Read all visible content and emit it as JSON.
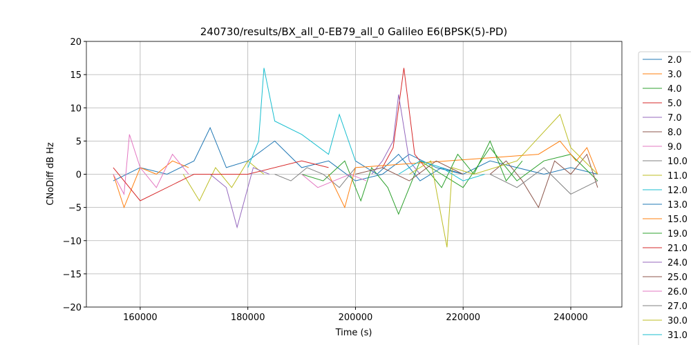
{
  "chart_data": {
    "type": "line",
    "title": "240730/results/BX_all_0-EB79_all_0 Galileo E6(BPSK(5)-PD)",
    "xlabel": "Time (s)",
    "ylabel": "CNoDiff dB Hz",
    "xlim": [
      150000,
      249500
    ],
    "ylim": [
      -20,
      20
    ],
    "xticks": [
      160000,
      180000,
      200000,
      220000,
      240000
    ],
    "yticks": [
      {
        "value": -20,
        "label": "−20"
      },
      {
        "value": -15,
        "label": "−15"
      },
      {
        "value": -10,
        "label": "−10"
      },
      {
        "value": -5,
        "label": "−5"
      },
      0,
      5,
      10,
      15,
      20
    ],
    "grid": true,
    "legend": "outside right",
    "series": [
      {
        "name": "2.0",
        "color": "#1f77b4",
        "x": [
          155000,
          160000,
          165000,
          170000,
          173000,
          176000,
          180000,
          185000,
          190000,
          195000,
          200000,
          205000,
          210000,
          215000,
          220000,
          225000,
          230000,
          235000,
          240000,
          245000
        ],
        "values": [
          -1,
          1,
          0,
          2,
          7,
          1,
          2,
          5,
          1,
          2,
          -1,
          0,
          3,
          1,
          0,
          2,
          1,
          0,
          1,
          0
        ]
      },
      {
        "name": "3.0",
        "color": "#ff7f0e",
        "x": [
          155000,
          157000,
          160000,
          163000,
          166000,
          169000
        ],
        "values": [
          0,
          -5,
          1,
          0,
          2,
          1
        ]
      },
      {
        "name": "4.0",
        "color": "#2ca02c",
        "x": [
          190000,
          194000,
          198000,
          201000,
          203000,
          206000,
          208000,
          212000,
          216000,
          220000,
          225000,
          230000,
          235000,
          240000,
          245000
        ],
        "values": [
          0,
          -1,
          2,
          -4,
          1,
          -2,
          -6,
          2,
          0,
          -2,
          4,
          -1,
          2,
          3,
          -1
        ]
      },
      {
        "name": "5.0",
        "color": "#d62728",
        "x": [
          205000,
          207000,
          209000,
          211000,
          213000
        ],
        "values": [
          1,
          4,
          16,
          3,
          1
        ]
      },
      {
        "name": "7.0",
        "color": "#9467bd",
        "x": [
          203000,
          205000,
          207000,
          208000,
          210000,
          212000
        ],
        "values": [
          0,
          2,
          5,
          12,
          2,
          0
        ]
      },
      {
        "name": "8.0",
        "color": "#8c564b",
        "x": [
          225000,
          228000,
          231000,
          234000,
          237000,
          240000,
          243000,
          245000
        ],
        "values": [
          0,
          2,
          -1,
          -5,
          2,
          0,
          3,
          -2
        ]
      },
      {
        "name": "9.0",
        "color": "#e377c2",
        "x": [
          155000,
          157000,
          158000,
          160000,
          163000,
          166000,
          169000
        ],
        "values": [
          0,
          -3,
          6,
          1,
          -2,
          3,
          0
        ]
      },
      {
        "name": "10.0",
        "color": "#7f7f7f",
        "x": [
          185000,
          188000,
          191000,
          194000,
          197000,
          200000
        ],
        "values": [
          0,
          -1,
          1,
          0,
          -2,
          1
        ]
      },
      {
        "name": "11.0",
        "color": "#bcbd22",
        "x": [
          168000,
          171000,
          174000,
          177000,
          180000,
          183000
        ],
        "values": [
          0,
          -4,
          1,
          -2,
          2,
          0
        ]
      },
      {
        "name": "12.0",
        "color": "#17becf",
        "x": [
          180000,
          182000,
          183000,
          185000,
          190000,
          195000,
          197000,
          200000
        ],
        "values": [
          1,
          5,
          16,
          8,
          6,
          3,
          9,
          2
        ]
      },
      {
        "name": "13.0",
        "color": "#1f77b4",
        "x": [
          200000,
          204000,
          208000,
          212000,
          216000,
          220000
        ],
        "values": [
          2,
          0,
          3,
          -1,
          1,
          0
        ]
      },
      {
        "name": "15.0",
        "color": "#ff7f0e",
        "x": [
          195000,
          198000,
          200000,
          234000,
          238000,
          241000,
          243000,
          245000
        ],
        "values": [
          0,
          -5,
          1,
          3,
          5,
          2,
          4,
          0
        ]
      },
      {
        "name": "19.0",
        "color": "#2ca02c",
        "x": [
          213000,
          216000,
          219000,
          222000,
          225000,
          228000,
          231000
        ],
        "values": [
          1,
          -2,
          3,
          0,
          5,
          -1,
          2
        ]
      },
      {
        "name": "21.0",
        "color": "#d62728",
        "x": [
          155000,
          160000,
          170000,
          180000,
          190000,
          195000
        ],
        "values": [
          1,
          -4,
          0,
          0,
          2,
          1
        ]
      },
      {
        "name": "24.0",
        "color": "#9467bd",
        "x": [
          173000,
          176000,
          178000,
          181000,
          184000
        ],
        "values": [
          0,
          -2,
          -8,
          1,
          0
        ]
      },
      {
        "name": "25.0",
        "color": "#8c564b",
        "x": [
          200000,
          205000,
          210000,
          215000,
          220000
        ],
        "values": [
          0,
          1,
          -1,
          2,
          0
        ]
      },
      {
        "name": "26.0",
        "color": "#e377c2",
        "x": [
          190000,
          193000,
          196000,
          199000,
          202000
        ],
        "values": [
          0,
          -2,
          -1,
          0,
          -1
        ]
      },
      {
        "name": "27.0",
        "color": "#7f7f7f",
        "x": [
          225000,
          230000,
          235000,
          240000,
          245000
        ],
        "values": [
          0,
          -2,
          1,
          -3,
          -1
        ]
      },
      {
        "name": "30.0",
        "color": "#bcbd22",
        "x": [
          210000,
          214000,
          217000,
          218000,
          222000,
          230000,
          238000,
          240000,
          245000
        ],
        "values": [
          0,
          2,
          -11,
          1,
          0,
          2,
          9,
          4,
          0
        ]
      },
      {
        "name": "31.0",
        "color": "#17becf",
        "x": [
          208000,
          212000,
          216000,
          220000,
          224000
        ],
        "values": [
          0,
          2,
          1,
          -1,
          0
        ]
      }
    ]
  }
}
